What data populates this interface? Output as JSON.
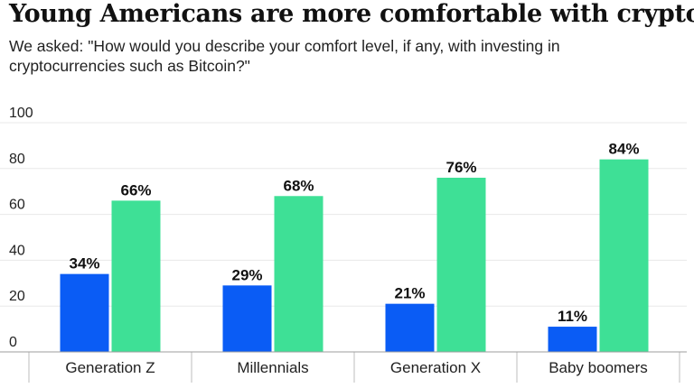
{
  "title": "Young Americans are more comfortable with crypto",
  "subtitle": "We asked: \"How would you describe your comfort level, if any, with investing in cryptocurrencies such as Bitcoin?\"",
  "chart_data": {
    "type": "bar",
    "categories": [
      "Generation Z",
      "Millennials",
      "Generation X",
      "Baby boomers"
    ],
    "series": [
      {
        "values": [
          34,
          29,
          21,
          11
        ],
        "color": "#0a5cf5",
        "labels": [
          "34%",
          "29%",
          "21%",
          "11%"
        ]
      },
      {
        "values": [
          66,
          68,
          76,
          84
        ],
        "color": "#3ee096",
        "labels": [
          "66%",
          "68%",
          "76%",
          "84%"
        ]
      }
    ],
    "ylim": [
      0,
      100
    ],
    "yticks": [
      0,
      20,
      40,
      60,
      80,
      100
    ],
    "ytick_labels": [
      "0",
      "20",
      "40",
      "60",
      "80",
      "100"
    ],
    "grid": true
  }
}
